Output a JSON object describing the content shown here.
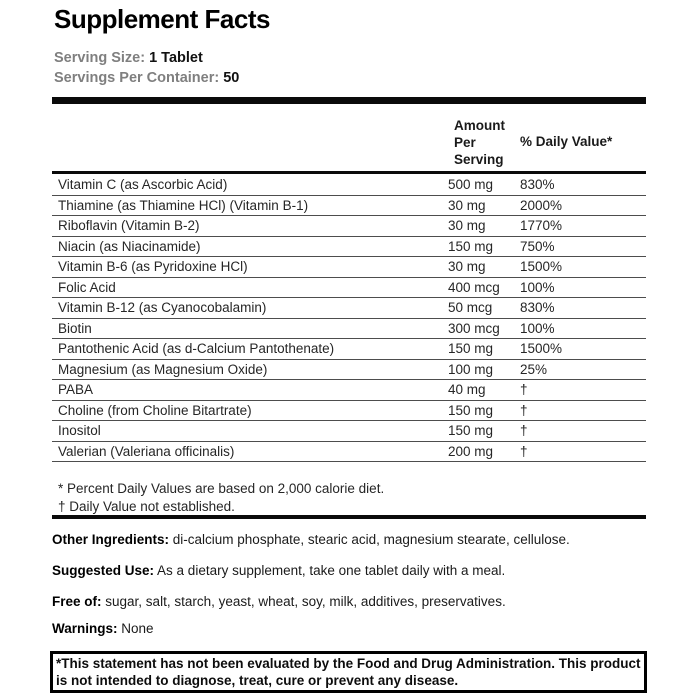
{
  "title": "Supplement Facts",
  "serving": {
    "size_label": "Serving Size:",
    "size_value": "1 Tablet",
    "container_label": "Servings Per Container:",
    "container_value": "50"
  },
  "table": {
    "headers": {
      "amount": "Amount Per Serving",
      "daily_value": "% Daily Value*"
    },
    "rows": [
      {
        "name": "Vitamin C (as Ascorbic Acid)",
        "amount": "500 mg",
        "dv": "830%"
      },
      {
        "name": "Thiamine (as Thiamine HCl) (Vitamin B-1)",
        "amount": "30 mg",
        "dv": "2000%"
      },
      {
        "name": "Riboflavin (Vitamin B-2)",
        "amount": "30 mg",
        "dv": "1770%"
      },
      {
        "name": "Niacin (as Niacinamide)",
        "amount": "150 mg",
        "dv": "750%"
      },
      {
        "name": "Vitamin B-6 (as Pyridoxine HCl)",
        "amount": "30 mg",
        "dv": "1500%"
      },
      {
        "name": "Folic Acid",
        "amount": "400 mcg",
        "dv": "100%"
      },
      {
        "name": "Vitamin B-12 (as Cyanocobalamin)",
        "amount": "50 mcg",
        "dv": "830%"
      },
      {
        "name": "Biotin",
        "amount": "300 mcg",
        "dv": "100%"
      },
      {
        "name": "Pantothenic Acid (as d-Calcium Pantothenate)",
        "amount": "150 mg",
        "dv": "1500%"
      },
      {
        "name": "Magnesium (as Magnesium Oxide)",
        "amount": "100 mg",
        "dv": "25%"
      },
      {
        "name": "PABA",
        "amount": "40 mg",
        "dv": "†"
      },
      {
        "name": "Choline (from Choline Bitartrate)",
        "amount": "150 mg",
        "dv": "†"
      },
      {
        "name": "Inositol",
        "amount": "150 mg",
        "dv": "†"
      },
      {
        "name": "Valerian (Valeriana officinalis)",
        "amount": "200 mg",
        "dv": "†"
      }
    ],
    "footnotes": [
      "* Percent Daily Values are based on 2,000 calorie diet.",
      "† Daily Value not established."
    ]
  },
  "sections": [
    {
      "label": "Other Ingredients:",
      "text": "di-calcium phosphate, stearic acid, magnesium stearate, cellulose."
    },
    {
      "label": "Suggested Use:",
      "text": "As a dietary supplement, take one tablet daily with a meal."
    },
    {
      "label": "Free of:",
      "text": "sugar, salt, starch, yeast, wheat, soy, milk, additives, preservatives."
    },
    {
      "label": "Warnings:",
      "text": "None"
    }
  ],
  "disclaimer": "*This statement has not been evaluated by the Food and Drug Administration. This product is not intended to diagnose, treat, cure or prevent any disease.",
  "colors": {
    "text": "#262626",
    "heading": "#000000",
    "muted_label": "#7f7f7f",
    "rule_thin": "#4d4d4d",
    "rule_thick": "#0a0a0a",
    "background": "#ffffff"
  }
}
